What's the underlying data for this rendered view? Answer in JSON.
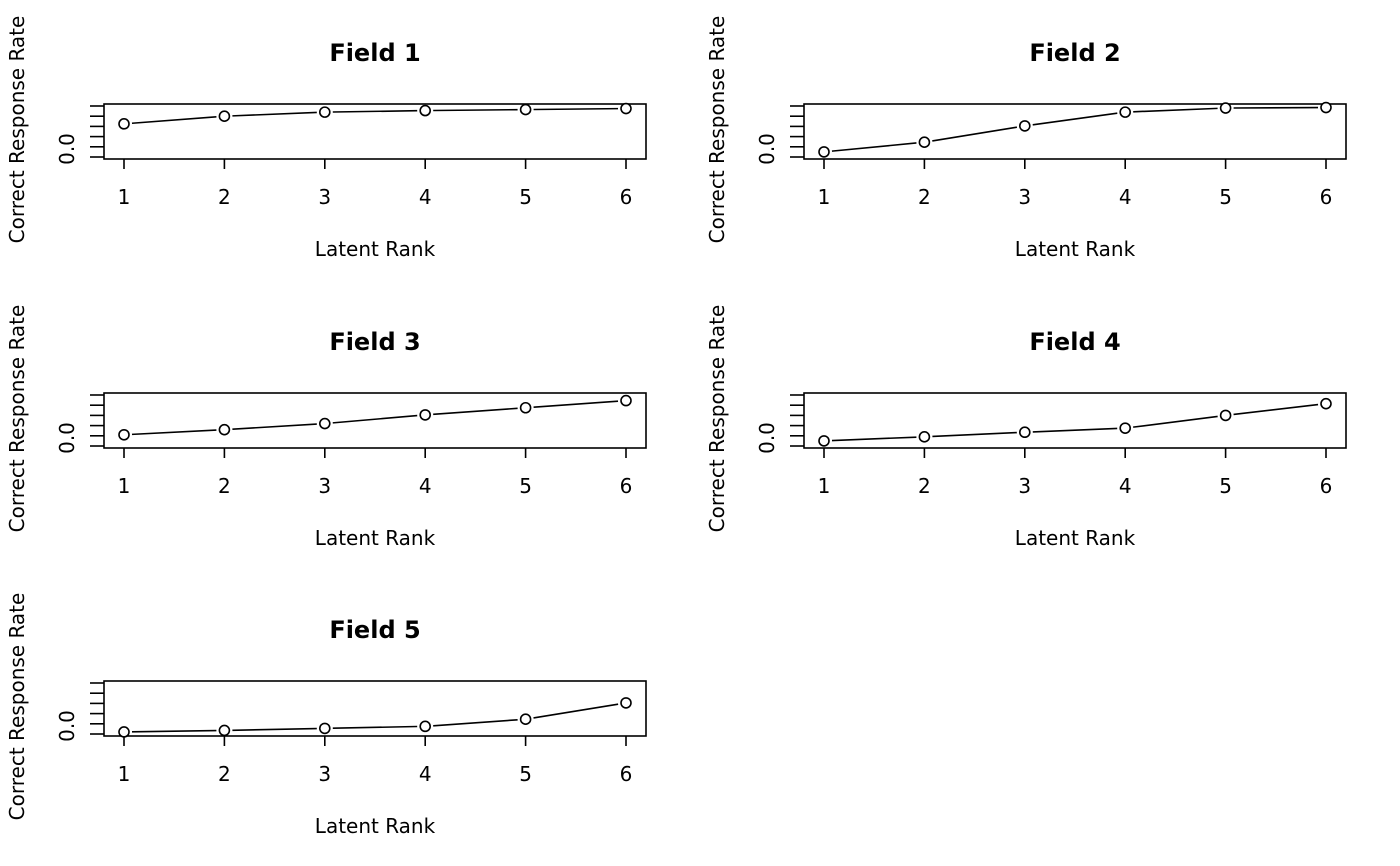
{
  "chart_data": [
    {
      "type": "line",
      "title": "Field 1",
      "xlabel": "Latent Rank",
      "ylabel": "Correct Response Rate",
      "x": [
        1,
        2,
        3,
        4,
        5,
        6
      ],
      "values": [
        0.65,
        0.8,
        0.88,
        0.91,
        0.93,
        0.95
      ],
      "ylim": [
        0,
        1
      ],
      "xticks": [
        "1",
        "2",
        "3",
        "4",
        "5",
        "6"
      ],
      "ytick_label": "0.0",
      "grid": false,
      "marker": "open-circle"
    },
    {
      "type": "line",
      "title": "Field 2",
      "xlabel": "Latent Rank",
      "ylabel": "Correct Response Rate",
      "x": [
        1,
        2,
        3,
        4,
        5,
        6
      ],
      "values": [
        0.1,
        0.29,
        0.61,
        0.88,
        0.96,
        0.97
      ],
      "ylim": [
        0,
        1
      ],
      "xticks": [
        "1",
        "2",
        "3",
        "4",
        "5",
        "6"
      ],
      "ytick_label": "0.0",
      "grid": false,
      "marker": "open-circle"
    },
    {
      "type": "line",
      "title": "Field 3",
      "xlabel": "Latent Rank",
      "ylabel": "Correct Response Rate",
      "x": [
        1,
        2,
        3,
        4,
        5,
        6
      ],
      "values": [
        0.22,
        0.32,
        0.44,
        0.61,
        0.75,
        0.89
      ],
      "ylim": [
        0,
        1
      ],
      "xticks": [
        "1",
        "2",
        "3",
        "4",
        "5",
        "6"
      ],
      "ytick_label": "0.0",
      "grid": false,
      "marker": "open-circle"
    },
    {
      "type": "line",
      "title": "Field 4",
      "xlabel": "Latent Rank",
      "ylabel": "Correct Response Rate",
      "x": [
        1,
        2,
        3,
        4,
        5,
        6
      ],
      "values": [
        0.1,
        0.18,
        0.27,
        0.35,
        0.6,
        0.83
      ],
      "ylim": [
        0,
        1
      ],
      "xticks": [
        "1",
        "2",
        "3",
        "4",
        "5",
        "6"
      ],
      "ytick_label": "0.0",
      "grid": false,
      "marker": "open-circle"
    },
    {
      "type": "line",
      "title": "Field 5",
      "xlabel": "Latent Rank",
      "ylabel": "Correct Response Rate",
      "x": [
        1,
        2,
        3,
        4,
        5,
        6
      ],
      "values": [
        0.04,
        0.07,
        0.11,
        0.15,
        0.29,
        0.61
      ],
      "ylim": [
        0,
        1
      ],
      "xticks": [
        "1",
        "2",
        "3",
        "4",
        "5",
        "6"
      ],
      "ytick_label": "0.0",
      "grid": false,
      "marker": "open-circle"
    }
  ]
}
